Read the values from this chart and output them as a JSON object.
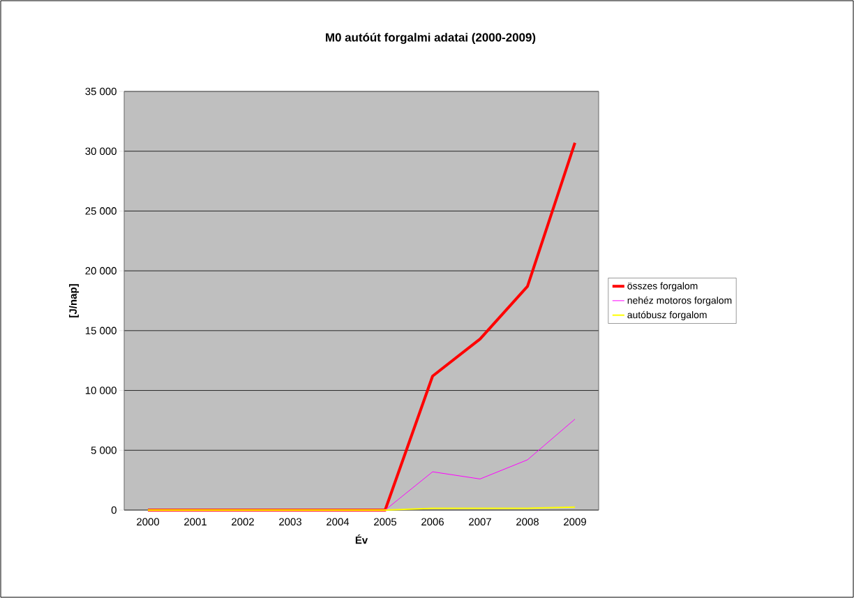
{
  "chart_data": {
    "type": "line",
    "title": "M0 autóút forgalmi adatai (2000-2009)",
    "xlabel": "Év",
    "ylabel": "[J/nap]",
    "categories": [
      "2000",
      "2001",
      "2002",
      "2003",
      "2004",
      "2005",
      "2006",
      "2007",
      "2008",
      "2009"
    ],
    "series": [
      {
        "name": "összes forgalom",
        "color": "#ff0000",
        "values": [
          0,
          0,
          0,
          0,
          0,
          0,
          11200,
          14300,
          18700,
          30700
        ]
      },
      {
        "name": "nehéz motoros forgalom",
        "color": "#ff00ff",
        "values": [
          null,
          null,
          null,
          null,
          null,
          0,
          3200,
          2600,
          4200,
          7600
        ]
      },
      {
        "name": "autóbusz forgalom",
        "color": "#ffff00",
        "values": [
          0,
          0,
          0,
          0,
          0,
          0,
          150,
          150,
          150,
          250
        ]
      }
    ],
    "ylim": [
      0,
      35000
    ],
    "yticks": [
      {
        "value": 0,
        "label": "0"
      },
      {
        "value": 5000,
        "label": "5 000"
      },
      {
        "value": 10000,
        "label": "10 000"
      },
      {
        "value": 15000,
        "label": "15 000"
      },
      {
        "value": 20000,
        "label": "20 000"
      },
      {
        "value": 25000,
        "label": "25 000"
      },
      {
        "value": 30000,
        "label": "30 000"
      },
      {
        "value": 35000,
        "label": "35 000"
      }
    ],
    "grid": "y",
    "legend": "right",
    "marker": "none",
    "line_style": "solid"
  }
}
